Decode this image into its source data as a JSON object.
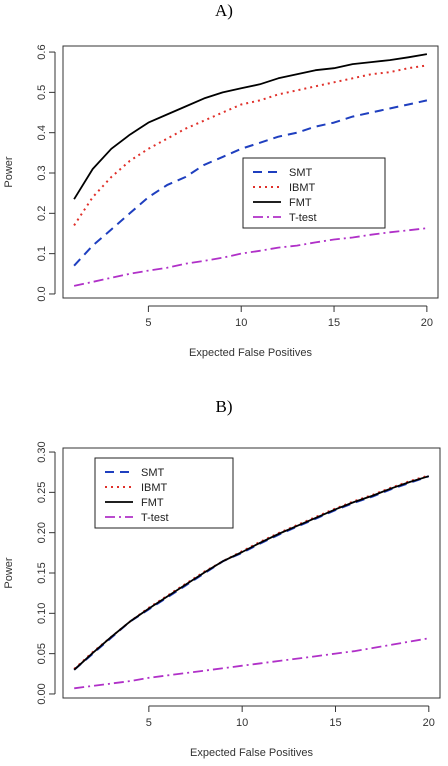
{
  "figure": {
    "panels": [
      {
        "label": "A)"
      },
      {
        "label": "B)"
      }
    ]
  },
  "series_styles": [
    {
      "name": "SMT",
      "color": "#1f3fbf",
      "dash": "9,6",
      "width": 2
    },
    {
      "name": "IBMT",
      "color": "#e0302a",
      "dash": "2,4",
      "width": 2
    },
    {
      "name": "FMT",
      "color": "#000000",
      "dash": "",
      "width": 1.8
    },
    {
      "name": "T-test",
      "color": "#b030c8",
      "dash": "10,4,2,4",
      "width": 1.8
    }
  ],
  "chart_data": [
    {
      "type": "line",
      "title": "",
      "xlabel": "Expected False Positives",
      "ylabel": "Power",
      "xlim": [
        0.4,
        20.6
      ],
      "ylim": [
        -0.01,
        0.615
      ],
      "xticks": [
        5,
        10,
        15,
        20
      ],
      "yticks": [
        0.0,
        0.1,
        0.2,
        0.3,
        0.4,
        0.5,
        0.6
      ],
      "ytick_labels": [
        "0.0",
        "0.1",
        "0.2",
        "0.3",
        "0.4",
        "0.5",
        "0.6"
      ],
      "legend": "center-right",
      "x": [
        1,
        2,
        3,
        4,
        5,
        6,
        7,
        8,
        9,
        10,
        11,
        12,
        13,
        14,
        15,
        16,
        17,
        18,
        19,
        20
      ],
      "series": [
        {
          "name": "SMT",
          "values": [
            0.07,
            0.12,
            0.16,
            0.2,
            0.24,
            0.27,
            0.29,
            0.32,
            0.34,
            0.36,
            0.375,
            0.39,
            0.4,
            0.415,
            0.425,
            0.44,
            0.45,
            0.46,
            0.47,
            0.48
          ]
        },
        {
          "name": "IBMT",
          "values": [
            0.17,
            0.24,
            0.29,
            0.33,
            0.36,
            0.385,
            0.41,
            0.43,
            0.45,
            0.47,
            0.48,
            0.495,
            0.505,
            0.515,
            0.525,
            0.535,
            0.545,
            0.55,
            0.56,
            0.567
          ]
        },
        {
          "name": "FMT",
          "values": [
            0.235,
            0.31,
            0.36,
            0.395,
            0.425,
            0.445,
            0.465,
            0.485,
            0.5,
            0.51,
            0.52,
            0.535,
            0.545,
            0.555,
            0.56,
            0.57,
            0.575,
            0.58,
            0.587,
            0.595
          ]
        },
        {
          "name": "T-test",
          "values": [
            0.02,
            0.03,
            0.04,
            0.05,
            0.058,
            0.065,
            0.075,
            0.082,
            0.09,
            0.1,
            0.107,
            0.115,
            0.12,
            0.128,
            0.135,
            0.14,
            0.147,
            0.153,
            0.158,
            0.163
          ]
        }
      ]
    },
    {
      "type": "line",
      "title": "",
      "xlabel": "Expected False Positives",
      "ylabel": "Power",
      "xlim": [
        0.4,
        20.6
      ],
      "ylim": [
        -0.005,
        0.305
      ],
      "xticks": [
        5,
        10,
        15,
        20
      ],
      "yticks": [
        0.0,
        0.05,
        0.1,
        0.15,
        0.2,
        0.25,
        0.3
      ],
      "ytick_labels": [
        "0.00",
        "0.05",
        "0.10",
        "0.15",
        "0.20",
        "0.25",
        "0.30"
      ],
      "legend": "top-left",
      "x": [
        1,
        2,
        3,
        4,
        5,
        6,
        7,
        8,
        9,
        10,
        11,
        12,
        13,
        14,
        15,
        16,
        17,
        18,
        19,
        20
      ],
      "series": [
        {
          "name": "SMT",
          "values": [
            0.03,
            0.05,
            0.07,
            0.09,
            0.105,
            0.12,
            0.135,
            0.15,
            0.165,
            0.175,
            0.187,
            0.198,
            0.208,
            0.218,
            0.228,
            0.237,
            0.245,
            0.254,
            0.262,
            0.27
          ]
        },
        {
          "name": "IBMT",
          "values": [
            0.031,
            0.052,
            0.071,
            0.09,
            0.107,
            0.122,
            0.137,
            0.152,
            0.165,
            0.177,
            0.189,
            0.2,
            0.21,
            0.22,
            0.23,
            0.239,
            0.247,
            0.256,
            0.264,
            0.271
          ]
        },
        {
          "name": "FMT",
          "values": [
            0.03,
            0.051,
            0.071,
            0.09,
            0.106,
            0.121,
            0.136,
            0.151,
            0.165,
            0.176,
            0.188,
            0.199,
            0.209,
            0.219,
            0.229,
            0.238,
            0.246,
            0.255,
            0.263,
            0.27
          ]
        },
        {
          "name": "T-test",
          "values": [
            0.007,
            0.01,
            0.013,
            0.016,
            0.02,
            0.023,
            0.026,
            0.029,
            0.032,
            0.035,
            0.038,
            0.041,
            0.044,
            0.047,
            0.05,
            0.053,
            0.057,
            0.061,
            0.065,
            0.069
          ]
        }
      ]
    }
  ]
}
